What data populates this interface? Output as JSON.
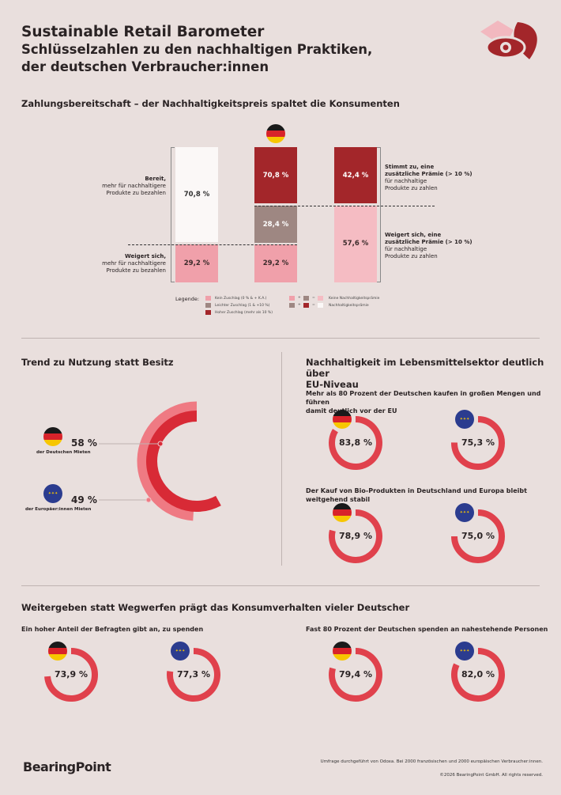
{
  "header": {
    "title": "Sustainable Retail Barometer",
    "subtitle_line1": "Schlüsselzahlen zu den nachhaltigen Praktiken,",
    "subtitle_line2": "der deutschen Verbraucher:innen",
    "logo_icon": "tag-leaf-eye-icon"
  },
  "colors": {
    "dark_red": "#a3262a",
    "pink": "#f0a0aa",
    "taupe": "#9e8782",
    "light_pink": "#f5bcc3",
    "white": "#fbf8f7",
    "ring": "#e0414c",
    "ring_light": "#ef7a83"
  },
  "section1": {
    "title": "Zahlungsbereitschaft – der Nachhaltigkeitspreis spaltet die Konsumenten",
    "left_top": {
      "bold": "Bereit,",
      "line1": "mehr für nachhaltigere",
      "line2": "Produkte zu bezahlen"
    },
    "left_bottom": {
      "bold": "Weigert sich,",
      "line1": "mehr für nachhaltigere",
      "line2": "Produkte zu bezahlen"
    },
    "right_top": {
      "bold1": "Stimmt zu, eine",
      "bold2": "zusätzliche Prämie (> 10 %)",
      "line1": "für nachhaltige",
      "line2": "Produkte zu zahlen"
    },
    "right_bottom": {
      "bold1": "Weigert sich, eine",
      "bold2": "zusätzliche Prämie (> 10 %)",
      "line1": "für nachhaltige",
      "line2": "Produkte zu zahlen"
    },
    "legend": {
      "title": "Legende:",
      "items": [
        "Kein Zuschlag (0 % & + K.A.)",
        "Leichter Zuschlag (1 & +10 %)",
        "Hoher Zuschlag (mehr als 10 %)"
      ],
      "eq1": "Keine Nachhaltigkeitsprämie",
      "eq2": "Nachhaltigkeitsprämie",
      "plus": "+",
      "equals": "="
    }
  },
  "chart_data": [
    {
      "type": "bar",
      "stacked": true,
      "series": [
        {
          "name": "Kein Zuschlag (0 % & + K.A.)",
          "values": [
            29.2,
            29.2,
            null
          ],
          "labels": [
            "29,2 %",
            "29,2 %",
            ""
          ]
        },
        {
          "name": "Leichter Zuschlag (1 & +10 %)",
          "values": [
            null,
            28.4,
            null
          ],
          "labels": [
            "",
            "28,4 %",
            ""
          ]
        },
        {
          "name": "Hoher Zuschlag (mehr als 10 %)",
          "values": [
            null,
            42.4,
            42.4
          ],
          "labels": [
            "",
            "70,8 %",
            "42,4 %"
          ]
        },
        {
          "name": "Keine Nachhaltigkeitsprämie",
          "values": [
            null,
            null,
            57.6
          ],
          "labels": [
            "",
            "",
            "57,6 %"
          ]
        },
        {
          "name": "Nachhaltigkeitsprämie",
          "values": [
            70.8,
            null,
            null
          ],
          "labels": [
            "70,8 %",
            "",
            ""
          ]
        }
      ]
    },
    {
      "type": "pie",
      "title": "Trend zu Nutzung statt Besitz",
      "values": [
        {
          "value": 58,
          "label": "58 %",
          "caption": "der Deutschen Mieten",
          "flag": "germany"
        },
        {
          "value": 49,
          "label": "49 %",
          "caption": "der Europäer:innen Mieten",
          "flag": "eu"
        }
      ]
    },
    {
      "type": "pie",
      "title": "Nachhaltigkeit im Lebensmittelsektor deutlich über EU-Niveau",
      "groups": [
        {
          "subtitle": "Mehr als 80 Prozent der Deutschen kaufen in großen Mengen und führen damit deutlich vor der EU",
          "values": [
            {
              "value": 83.8,
              "label": "83,8 %",
              "flag": "germany"
            },
            {
              "value": 75.3,
              "label": "75,3 %",
              "flag": "eu"
            }
          ]
        },
        {
          "subtitle": "Der Kauf von Bio-Produkten in Deutschland und Europa bleibt weitgehend stabil",
          "values": [
            {
              "value": 78.9,
              "label": "78,9 %",
              "flag": "germany"
            },
            {
              "value": 75.0,
              "label": "75,0 %",
              "flag": "eu"
            }
          ]
        }
      ]
    },
    {
      "type": "pie",
      "title": "Weitergeben statt Wegwerfen prägt das Konsumverhalten vieler Deutscher",
      "groups": [
        {
          "subtitle": "Ein hoher Anteil der Befragten gibt an, zu spenden",
          "values": [
            {
              "value": 73.9,
              "label": "73,9 %",
              "flag": "germany"
            },
            {
              "value": 77.3,
              "label": "77,3 %",
              "flag": "eu"
            }
          ]
        },
        {
          "subtitle": "Fast 80 Prozent der Deutschen spenden an nahestehende Personen",
          "values": [
            {
              "value": 79.4,
              "label": "79,4 %",
              "flag": "germany"
            },
            {
              "value": 82.0,
              "label": "82,0 %",
              "flag": "eu"
            }
          ]
        }
      ]
    }
  ],
  "section2_title_line1": "Nachhaltigkeit im Lebensmittelsektor deutlich über",
  "section2_title_line2": "EU-Niveau",
  "section2_sub1_line1": "Mehr als 80 Prozent der Deutschen kaufen in großen Mengen und führen",
  "section2_sub1_line2": "damit deutlich vor der EU",
  "footer": {
    "brand": "BearingPoint",
    "note": "Umfrage durchgeführt von Odoxa. Bei 2000 französischen und 2000 europäischen Verbraucher:innen.",
    "copyright": "©2026 BearingPoint GmbH. All rights reserved."
  }
}
